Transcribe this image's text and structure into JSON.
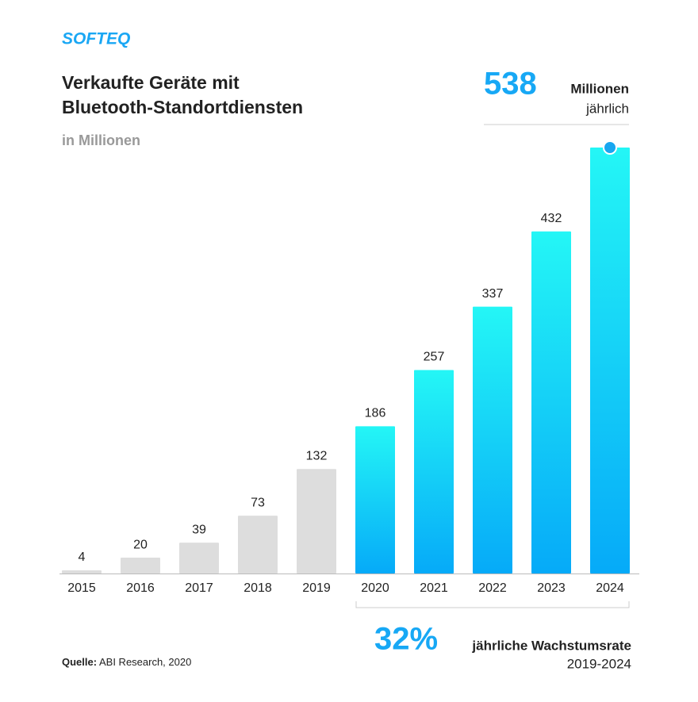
{
  "logo": "SOFTEQ",
  "source": {
    "label": "Quelle:",
    "text": "ABI Research, 2020"
  },
  "chart_data": {
    "type": "bar",
    "title": [
      "Verkaufte Geräte mit",
      "Bluetooth-Standortdiensten"
    ],
    "subtitle": "in Millionen",
    "categories": [
      "2015",
      "2016",
      "2017",
      "2018",
      "2019",
      "2020",
      "2021",
      "2022",
      "2023",
      "2024"
    ],
    "values": [
      4,
      20,
      39,
      73,
      132,
      186,
      257,
      337,
      432,
      538
    ],
    "colors": [
      "#dddddd",
      "#dddddd",
      "#dddddd",
      "#dddddd",
      "#dddddd",
      [
        "#24f6f6",
        "#06aaf8"
      ],
      [
        "#24f6f6",
        "#06aaf8"
      ],
      [
        "#24f6f6",
        "#06aaf8"
      ],
      [
        "#24f6f6",
        "#06aaf8"
      ],
      [
        "#24f6f6",
        "#06aaf8"
      ]
    ],
    "ylim": [
      0,
      538
    ],
    "highlight": {
      "value": 538,
      "text": [
        "Millionen",
        "jährlich"
      ]
    },
    "growth": {
      "value": 32,
      "label": "32%",
      "text": "jährliche Wachstumsrate",
      "period": "2019-2024"
    }
  }
}
